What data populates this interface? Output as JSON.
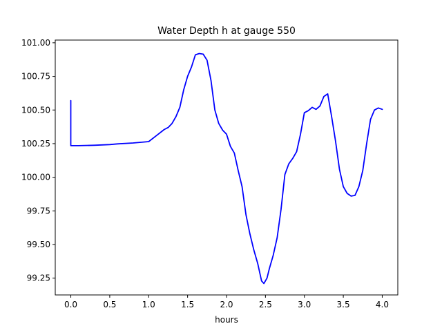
{
  "chart_data": {
    "type": "line",
    "title": "Water Depth h at gauge 550",
    "xlabel": "hours",
    "ylabel": "",
    "xlim": [
      -0.2,
      4.2
    ],
    "ylim": [
      99.125,
      101.02
    ],
    "xticks": [
      0.0,
      0.5,
      1.0,
      1.5,
      2.0,
      2.5,
      3.0,
      3.5,
      4.0
    ],
    "xtick_labels": [
      "0.0",
      "0.5",
      "1.0",
      "1.5",
      "2.0",
      "2.5",
      "3.0",
      "3.5",
      "4.0"
    ],
    "yticks": [
      99.25,
      99.5,
      99.75,
      100.0,
      100.25,
      100.5,
      100.75,
      101.0
    ],
    "ytick_labels": [
      "99.25",
      "99.50",
      "99.75",
      "100.00",
      "100.25",
      "100.50",
      "100.75",
      "101.00"
    ],
    "grid": false,
    "series": [
      {
        "color": "#0000ff",
        "x": [
          0.0,
          0.0,
          0.1,
          0.3,
          0.5,
          0.6,
          0.8,
          1.0,
          1.1,
          1.2,
          1.25,
          1.3,
          1.35,
          1.4,
          1.45,
          1.5,
          1.55,
          1.6,
          1.65,
          1.7,
          1.75,
          1.8,
          1.85,
          1.9,
          1.95,
          2.0,
          2.05,
          2.1,
          2.15,
          2.2,
          2.25,
          2.3,
          2.35,
          2.4,
          2.45,
          2.48,
          2.52,
          2.55,
          2.6,
          2.65,
          2.7,
          2.75,
          2.8,
          2.85,
          2.9,
          2.95,
          3.0,
          3.05,
          3.1,
          3.15,
          3.2,
          3.25,
          3.3,
          3.35,
          3.4,
          3.45,
          3.5,
          3.55,
          3.6,
          3.65,
          3.7,
          3.75,
          3.8,
          3.85,
          3.9,
          3.95,
          4.0
        ],
        "y": [
          100.57,
          100.235,
          100.235,
          100.238,
          100.243,
          100.248,
          100.255,
          100.265,
          100.31,
          100.355,
          100.37,
          100.4,
          100.45,
          100.52,
          100.65,
          100.75,
          100.82,
          100.91,
          100.92,
          100.915,
          100.87,
          100.72,
          100.5,
          100.4,
          100.35,
          100.32,
          100.23,
          100.18,
          100.05,
          99.93,
          99.72,
          99.58,
          99.46,
          99.36,
          99.23,
          99.21,
          99.25,
          99.32,
          99.42,
          99.55,
          99.76,
          100.02,
          100.1,
          100.14,
          100.19,
          100.32,
          100.48,
          100.495,
          100.52,
          100.505,
          100.53,
          100.6,
          100.62,
          100.45,
          100.27,
          100.06,
          99.93,
          99.88,
          99.86,
          99.865,
          99.93,
          100.05,
          100.25,
          100.43,
          100.5,
          100.515,
          100.505
        ]
      }
    ]
  }
}
